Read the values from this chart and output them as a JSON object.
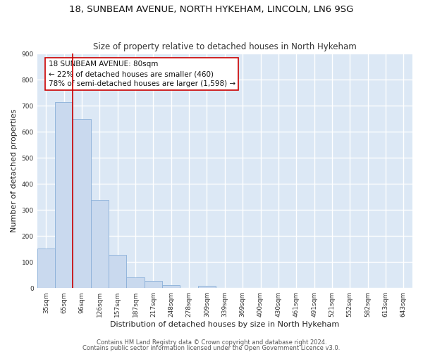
{
  "title": "18, SUNBEAM AVENUE, NORTH HYKEHAM, LINCOLN, LN6 9SG",
  "subtitle": "Size of property relative to detached houses in North Hykeham",
  "xlabel": "Distribution of detached houses by size in North Hykeham",
  "ylabel": "Number of detached properties",
  "bar_categories": [
    "35sqm",
    "65sqm",
    "96sqm",
    "126sqm",
    "157sqm",
    "187sqm",
    "217sqm",
    "248sqm",
    "278sqm",
    "309sqm",
    "339sqm",
    "369sqm",
    "400sqm",
    "430sqm",
    "461sqm",
    "491sqm",
    "521sqm",
    "552sqm",
    "582sqm",
    "613sqm",
    "643sqm"
  ],
  "bar_values": [
    152,
    715,
    650,
    338,
    128,
    42,
    28,
    12,
    0,
    10,
    0,
    0,
    0,
    0,
    0,
    0,
    0,
    0,
    0,
    0,
    0
  ],
  "bar_color": "#c9d9ee",
  "bar_edge_color": "#8ab0d8",
  "ylim": [
    0,
    900
  ],
  "yticks": [
    0,
    100,
    200,
    300,
    400,
    500,
    600,
    700,
    800,
    900
  ],
  "vline_x_index": 1,
  "vline_color": "#cc0000",
  "ann_line1": "18 SUNBEAM AVENUE: 80sqm",
  "ann_line2": "← 22% of detached houses are smaller (460)",
  "ann_line3": "78% of semi-detached houses are larger (1,598) →",
  "footer1": "Contains HM Land Registry data © Crown copyright and database right 2024.",
  "footer2": "Contains public sector information licensed under the Open Government Licence v3.0.",
  "bg_color": "#ffffff",
  "plot_bg_color": "#dce8f5",
  "grid_color": "#ffffff",
  "title_fontsize": 9.5,
  "subtitle_fontsize": 8.5,
  "axis_label_fontsize": 8,
  "tick_fontsize": 6.5,
  "footer_fontsize": 6,
  "ann_fontsize": 7.5
}
